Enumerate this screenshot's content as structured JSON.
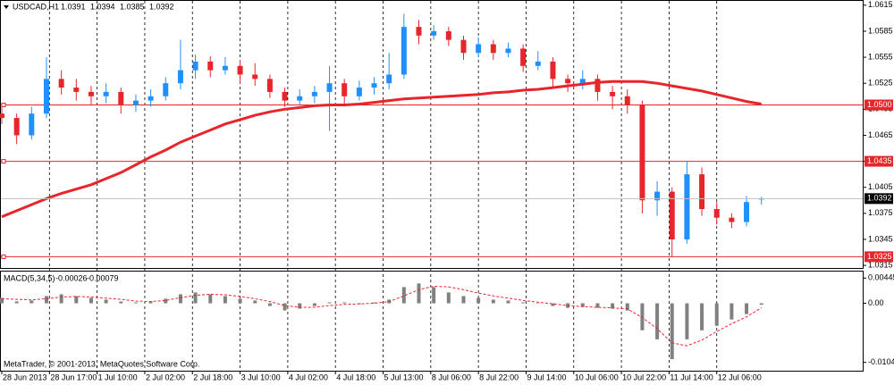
{
  "chart_data": [
    {
      "type": "candlestick",
      "title": "USDCAD,H1",
      "x": [
        0,
        5,
        10,
        15,
        20,
        25,
        30,
        35,
        40,
        45,
        50,
        55,
        60,
        65,
        70,
        75,
        80,
        85,
        90,
        95,
        100,
        105,
        110,
        115,
        120,
        125,
        130,
        135,
        140,
        145,
        150,
        155,
        160,
        165,
        170,
        175,
        180,
        185,
        190,
        195,
        200,
        205,
        210,
        215,
        220,
        225,
        230,
        235,
        240,
        245,
        250,
        255
      ],
      "open": [
        1.049,
        1.0485,
        1.0465,
        1.049,
        1.053,
        1.052,
        1.0515,
        1.051,
        1.0515,
        1.05,
        1.0505,
        1.051,
        1.0525,
        1.054,
        1.055,
        1.054,
        1.0545,
        1.0535,
        1.053,
        1.0515,
        1.0505,
        1.051,
        1.0515,
        1.0525,
        1.051,
        1.052,
        1.0525,
        1.0535,
        1.059,
        1.058,
        1.0585,
        1.0575,
        1.056,
        1.057,
        1.056,
        1.0565,
        1.0545,
        1.055,
        1.053,
        1.0525,
        1.053,
        1.0515,
        1.051,
        1.05,
        1.039,
        1.04,
        1.0345,
        1.042,
        1.038,
        1.037,
        1.0365,
        1.0391
      ],
      "high": [
        1.0498,
        1.049,
        1.0498,
        1.0555,
        1.054,
        1.053,
        1.0522,
        1.0525,
        1.052,
        1.0512,
        1.0518,
        1.0532,
        1.0575,
        1.0558,
        1.0556,
        1.0555,
        1.0552,
        1.0548,
        1.0535,
        1.052,
        1.0518,
        1.0522,
        1.0545,
        1.053,
        1.0528,
        1.0532,
        1.056,
        1.0605,
        1.0598,
        1.0592,
        1.059,
        1.058,
        1.0578,
        1.0575,
        1.0572,
        1.057,
        1.0562,
        1.0555,
        1.0535,
        1.054,
        1.0535,
        1.0522,
        1.0518,
        1.0505,
        1.0412,
        1.0405,
        1.0435,
        1.0428,
        1.0388,
        1.0375,
        1.0395,
        1.0394
      ],
      "low": [
        1.0478,
        1.0455,
        1.046,
        1.0485,
        1.0512,
        1.0505,
        1.05,
        1.0502,
        1.049,
        1.0492,
        1.0498,
        1.0505,
        1.0518,
        1.053,
        1.0532,
        1.0535,
        1.0525,
        1.0522,
        1.0508,
        1.0498,
        1.05,
        1.0502,
        1.047,
        1.05,
        1.0505,
        1.0512,
        1.0518,
        1.053,
        1.057,
        1.0575,
        1.0568,
        1.0552,
        1.0555,
        1.0552,
        1.0555,
        1.0538,
        1.054,
        1.052,
        1.0515,
        1.0518,
        1.0505,
        1.0495,
        1.049,
        1.0375,
        1.0372,
        1.0325,
        1.034,
        1.0372,
        1.0362,
        1.0358,
        1.036,
        1.0385
      ],
      "close": [
        1.0485,
        1.0465,
        1.049,
        1.053,
        1.052,
        1.0515,
        1.051,
        1.0515,
        1.05,
        1.0505,
        1.051,
        1.0525,
        1.054,
        1.055,
        1.054,
        1.0545,
        1.0535,
        1.053,
        1.0515,
        1.0505,
        1.051,
        1.0515,
        1.0525,
        1.051,
        1.052,
        1.0525,
        1.0535,
        1.059,
        1.058,
        1.0585,
        1.0575,
        1.056,
        1.057,
        1.056,
        1.0565,
        1.0545,
        1.055,
        1.053,
        1.0525,
        1.053,
        1.0515,
        1.051,
        1.05,
        1.039,
        1.04,
        1.0345,
        1.042,
        1.038,
        1.037,
        1.0365,
        1.0388,
        1.0392
      ],
      "ma_values": [
        1.0371,
        1.0378,
        1.0385,
        1.0392,
        1.0398,
        1.0403,
        1.0408,
        1.0415,
        1.0422,
        1.0431,
        1.044,
        1.0448,
        1.0457,
        1.0464,
        1.0471,
        1.0478,
        1.0483,
        1.0488,
        1.0492,
        1.0495,
        1.0497,
        1.0499,
        1.05,
        1.05,
        1.0501,
        1.0503,
        1.0505,
        1.0507,
        1.0508,
        1.0509,
        1.051,
        1.0511,
        1.0512,
        1.0514,
        1.0515,
        1.0517,
        1.0518,
        1.052,
        1.0522,
        1.0524,
        1.0526,
        1.0527,
        1.0527,
        1.0527,
        1.0525,
        1.0522,
        1.0519,
        1.0516,
        1.0512,
        1.0508,
        1.0504,
        1.0501
      ],
      "up_color": "#1e90ff",
      "down_color": "#e8252a",
      "ma_color": "#e8252a",
      "level_color": "#e8252a",
      "levels": [
        {
          "value": 1.05,
          "label": "1.0500"
        },
        1.0435,
        1.0325
      ],
      "xlim": [
        -0.6,
        289
      ],
      "xticks": [
        {
          "value": 0,
          "label": "28 Jun 2013"
        },
        {
          "value": 16,
          "label": "28 Jun 17:00"
        },
        {
          "value": 32,
          "label": "1 Jul 10:00"
        },
        {
          "value": 48,
          "label": "2 Jul 02:00"
        },
        {
          "value": 64,
          "label": "2 Jul 18:00"
        },
        {
          "value": 80,
          "label": "3 Jul 10:00"
        },
        {
          "value": 96,
          "label": "4 Jul 02:00"
        },
        {
          "value": 112,
          "label": "4 Jul 18:00"
        },
        {
          "value": 128,
          "label": "5 Jul 13:00"
        },
        {
          "value": 144,
          "label": "8 Jul 06:00"
        },
        {
          "value": 160,
          "label": "8 Jul 22:00"
        },
        {
          "value": 176,
          "label": "9 Jul 14:00"
        },
        {
          "value": 192,
          "label": "10 Jul 06:00"
        },
        {
          "value": 208,
          "label": "10 Jul 22:00"
        },
        {
          "value": 224,
          "label": "11 Jul 14:00"
        },
        {
          "value": 240,
          "label": "12 Jul 06:00"
        }
      ],
      "ylim": [
        1.0312,
        1.0621
      ],
      "yticks": [
        1.0615,
        1.0585,
        1.0555,
        1.0525,
        1.0495,
        1.0465,
        1.0435,
        1.0405,
        1.0375,
        1.0345,
        1.0315
      ],
      "grid": "vertical"
    },
    {
      "type": "macd",
      "title": "MACD(5,34,5)",
      "histogram": [
        0.00095,
        0.00032,
        0.00048,
        0.00127,
        0.00159,
        0.00127,
        0.00095,
        0.00064,
        0.00032,
        0.00016,
        0.00032,
        0.0008,
        0.00159,
        0.00191,
        0.00159,
        0.00127,
        0.0008,
        0.00048,
        -0.00048,
        -0.00127,
        -0.00095,
        -0.00048,
        0.00016,
        0.00016,
        -0.00016,
        0.00016,
        0.00064,
        0.00286,
        0.0035,
        0.00286,
        0.00191,
        0.00127,
        0.00095,
        0.00064,
        0.00048,
        0.00016,
        0,
        -0.00048,
        -0.0008,
        -0.00064,
        -0.0008,
        -0.00095,
        -0.00127,
        -0.00477,
        -0.00636,
        -0.00986,
        -0.00636,
        -0.00477,
        -0.00398,
        -0.00286,
        -0.00191,
        -0.00026
      ],
      "signal": [
        0.0008,
        0.0007,
        0.0006,
        0.0008,
        0.0011,
        0.0012,
        0.0011,
        0.0009,
        0.0007,
        0.0004,
        0.0003,
        0.0005,
        0.001,
        0.0014,
        0.0016,
        0.0015,
        0.0012,
        0.0008,
        0.0003,
        -0.0004,
        -0.0007,
        -0.0007,
        -0.0004,
        -0.0002,
        -0.0001,
        0,
        0.0003,
        0.0013,
        0.0024,
        0.003,
        0.0029,
        0.0024,
        0.0018,
        0.0013,
        0.0009,
        0.0005,
        0.0002,
        -0.0001,
        -0.0004,
        -0.0006,
        -0.0007,
        -0.0008,
        -0.001,
        -0.0025,
        -0.0045,
        -0.007,
        -0.0075,
        -0.0065,
        -0.005,
        -0.0036,
        -0.0024,
        -0.00079
      ],
      "histogram_color": "#808080",
      "signal_color": "#e8252a",
      "ylim": [
        -0.0119,
        0.0056
      ],
      "yticks": [
        0.00445,
        {
          "value": 0,
          "label": "0.00"
        },
        -0.01043
      ]
    }
  ],
  "footer": "MetaTrader, © 2001-2013, MetaQuotes Software Corp."
}
